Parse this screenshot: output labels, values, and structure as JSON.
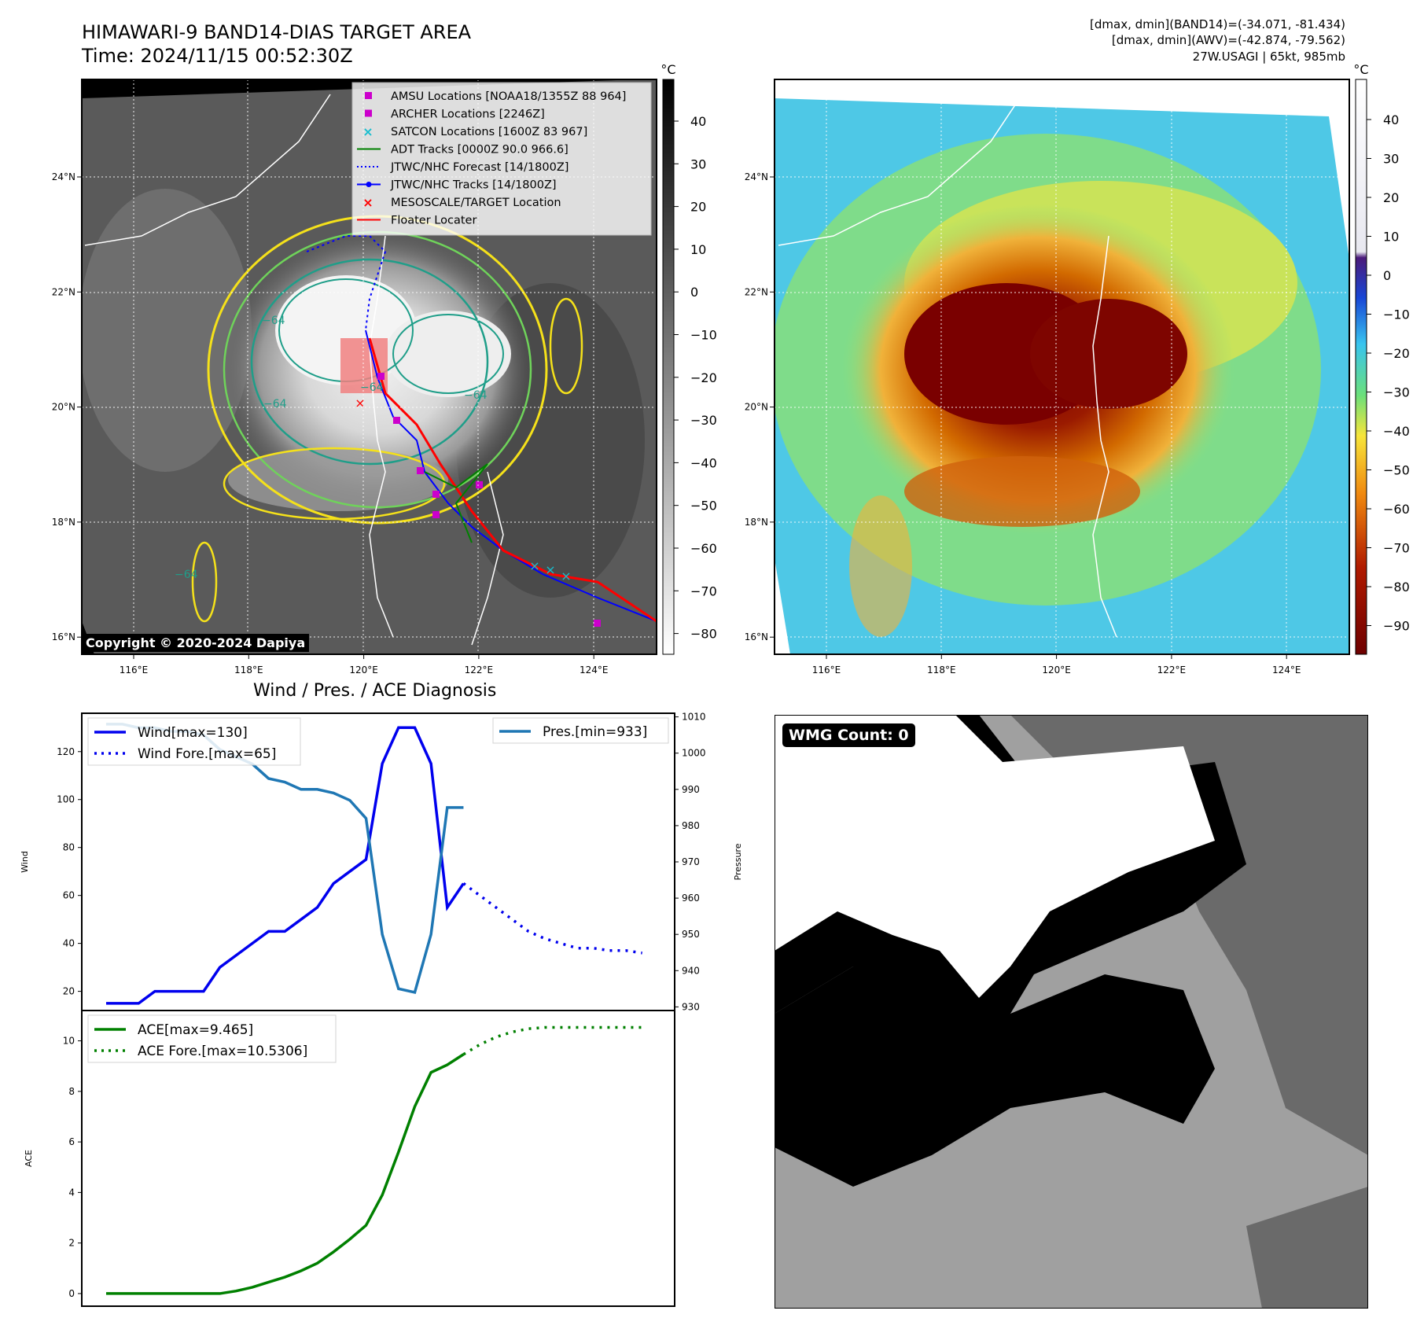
{
  "header": {
    "title": "HIMAWARI-9 BAND14-DIAS TARGET AREA",
    "time": "Time: 2024/11/15 00:52:30Z",
    "stats_band14": "[dmax, dmin](BAND14)=(-34.071, -81.434)",
    "stats_awv": "[dmax, dmin](AWV)=(-42.874, -79.562)",
    "storm": "27W.USAGI | 65kt, 985mb"
  },
  "copyright": "Copyright © 2020-2024 Dapiya",
  "wmg_count": "WMG Count: 0",
  "colors": {
    "wind": "#0000ee",
    "pressure": "#1f77b4",
    "ace": "#008000",
    "adt": "#008000",
    "jtwc": "#0000ff",
    "floater": "#ff0000",
    "amsu": "#cc00cc",
    "satcon": "#17becf",
    "contour_yellow": "#f5e11a",
    "contour_green": "#6fd35a",
    "contour_teal": "#1f9e89",
    "contour_blue": "#2c3e8f"
  },
  "map_left": {
    "unit": "°C",
    "colorbar_ticks": [
      "40",
      "30",
      "20",
      "10",
      "0",
      "−10",
      "−20",
      "−30",
      "−40",
      "−50",
      "−60",
      "−70",
      "−80"
    ],
    "lon_ticks": [
      "116°E",
      "118°E",
      "120°E",
      "122°E",
      "124°E"
    ],
    "lat_ticks": [
      "24°N",
      "22°N",
      "20°N",
      "18°N",
      "16°N"
    ],
    "contour_labels": [
      "−64",
      "−64",
      "−64",
      "−64",
      "−64"
    ],
    "legend": [
      {
        "label": "AMSU Locations [NOAA18/1355Z 88 964]",
        "marker": "square",
        "color": "#cc00cc"
      },
      {
        "label": "ARCHER Locations [2246Z]",
        "marker": "square",
        "color": "#cc00cc"
      },
      {
        "label": "SATCON Locations [1600Z 83 967]",
        "marker": "x",
        "color": "#17becf"
      },
      {
        "label": "ADT Tracks [0000Z 90.0 966.6]",
        "marker": "line",
        "color": "#008000"
      },
      {
        "label": "JTWC/NHC Forecast [14/1800Z]",
        "marker": "dotted",
        "color": "#0000ff"
      },
      {
        "label": "JTWC/NHC Tracks [14/1800Z]",
        "marker": "linedot",
        "color": "#0000ff"
      },
      {
        "label": "MESOSCALE/TARGET Location",
        "marker": "x",
        "color": "#ff0000"
      },
      {
        "label": "Floater Locater",
        "marker": "line",
        "color": "#ff0000"
      }
    ]
  },
  "map_right": {
    "unit": "°C",
    "colorbar_ticks": [
      "40",
      "30",
      "20",
      "10",
      "0",
      "−10",
      "−20",
      "−30",
      "−40",
      "−50",
      "−60",
      "−70",
      "−80",
      "−90"
    ],
    "lon_ticks": [
      "116°E",
      "118°E",
      "120°E",
      "122°E",
      "124°E"
    ],
    "lat_ticks": [
      "24°N",
      "22°N",
      "20°N",
      "18°N",
      "16°N"
    ]
  },
  "chart_data": [
    {
      "type": "line",
      "title": "Wind / Pres. / ACE Diagnosis",
      "ylabel": "Wind",
      "ylabel_right": "Pressure",
      "ylim": [
        12,
        136
      ],
      "ylim_right": [
        929,
        1011
      ],
      "yticks": [
        20,
        40,
        60,
        80,
        100,
        120
      ],
      "yticks_right": [
        930,
        940,
        950,
        960,
        970,
        980,
        990,
        1000,
        1010
      ],
      "legend_left": [
        "Wind[max=130]",
        "Wind Fore.[max=65]"
      ],
      "legend_right": [
        "Pres.[min=933]"
      ],
      "x": [
        0,
        1,
        2,
        3,
        4,
        5,
        6,
        7,
        8,
        9,
        10,
        11,
        12,
        13,
        14,
        15,
        16,
        17,
        18,
        19,
        20,
        21,
        22,
        23,
        24,
        25,
        26,
        27,
        28,
        29,
        30,
        31,
        32,
        33
      ],
      "series": [
        {
          "name": "Wind[max=130]",
          "style": "solid",
          "x": [
            0,
            1,
            2,
            3,
            4,
            5,
            6,
            7,
            8,
            9,
            10,
            11,
            12,
            13,
            14,
            15,
            16,
            17,
            18,
            19,
            20,
            21,
            22
          ],
          "values": [
            15,
            15,
            15,
            20,
            20,
            20,
            20,
            30,
            35,
            40,
            45,
            45,
            50,
            55,
            65,
            70,
            75,
            115,
            130,
            130,
            115,
            55,
            65
          ]
        },
        {
          "name": "Wind Fore.[max=65]",
          "style": "dotted",
          "x": [
            22,
            23,
            24,
            25,
            26,
            27,
            28,
            29,
            30,
            31,
            32,
            33
          ],
          "values": [
            65,
            60,
            55,
            50,
            45,
            42,
            40,
            38,
            38,
            37,
            37,
            36
          ]
        },
        {
          "name": "Pres.[min=933]",
          "style": "solid",
          "axis": "right",
          "x": [
            0,
            1,
            2,
            3,
            4,
            5,
            6,
            7,
            8,
            9,
            10,
            11,
            12,
            13,
            14,
            15,
            16,
            17,
            18,
            19,
            20,
            21,
            22
          ],
          "values": [
            1008,
            1008,
            1007,
            1007,
            1006,
            1006,
            1005,
            1001,
            999,
            997,
            993,
            992,
            990,
            990,
            989,
            987,
            982,
            950,
            935,
            934,
            950,
            985,
            985
          ]
        }
      ]
    },
    {
      "type": "line",
      "ylabel": "ACE",
      "ylim": [
        -0.5,
        11.2
      ],
      "yticks": [
        0,
        2,
        4,
        6,
        8,
        10
      ],
      "legend": [
        "ACE[max=9.465]",
        "ACE Fore.[max=10.5306]"
      ],
      "series": [
        {
          "name": "ACE[max=9.465]",
          "style": "solid",
          "x": [
            0,
            1,
            2,
            3,
            4,
            5,
            6,
            7,
            8,
            9,
            10,
            11,
            12,
            13,
            14,
            15,
            16,
            17,
            18,
            19,
            20,
            21,
            22
          ],
          "values": [
            0,
            0,
            0,
            0,
            0,
            0,
            0,
            0,
            0.1,
            0.25,
            0.45,
            0.65,
            0.9,
            1.2,
            1.65,
            2.15,
            2.7,
            3.9,
            5.6,
            7.4,
            8.75,
            9.05,
            9.465
          ]
        },
        {
          "name": "ACE Fore.[max=10.5306]",
          "style": "dotted",
          "x": [
            22,
            23,
            24,
            25,
            26,
            27,
            28,
            29,
            30,
            31,
            32,
            33
          ],
          "values": [
            9.465,
            9.85,
            10.15,
            10.35,
            10.48,
            10.53,
            10.53,
            10.53,
            10.53,
            10.53,
            10.53,
            10.53
          ]
        }
      ]
    }
  ]
}
